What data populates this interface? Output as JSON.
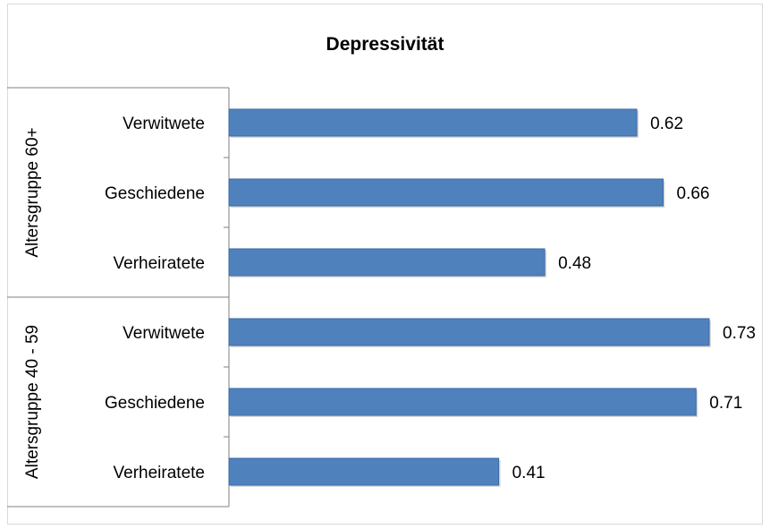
{
  "chart_data": {
    "type": "bar",
    "orientation": "horizontal",
    "title": "Depressivität",
    "xlim": [
      0,
      0.75
    ],
    "grid": false,
    "legend": "none",
    "groups": [
      {
        "name": "Altersgruppe 60+",
        "categories": [
          "Verwitwete",
          "Geschiedene",
          "Verheiratete"
        ],
        "values": [
          0.62,
          0.66,
          0.48
        ],
        "value_labels": [
          "0.62",
          "0.66",
          "0.48"
        ]
      },
      {
        "name": "Altersgruppe 40 - 59",
        "categories": [
          "Verwitwete",
          "Geschiedene",
          "Verheiratete"
        ],
        "values": [
          0.73,
          0.71,
          0.41
        ],
        "value_labels": [
          "0.73",
          "0.71",
          "0.41"
        ]
      }
    ],
    "colors": {
      "bar": "#4f81bd",
      "bar_edge": "#3a6aa3",
      "axis": "#808080"
    }
  }
}
